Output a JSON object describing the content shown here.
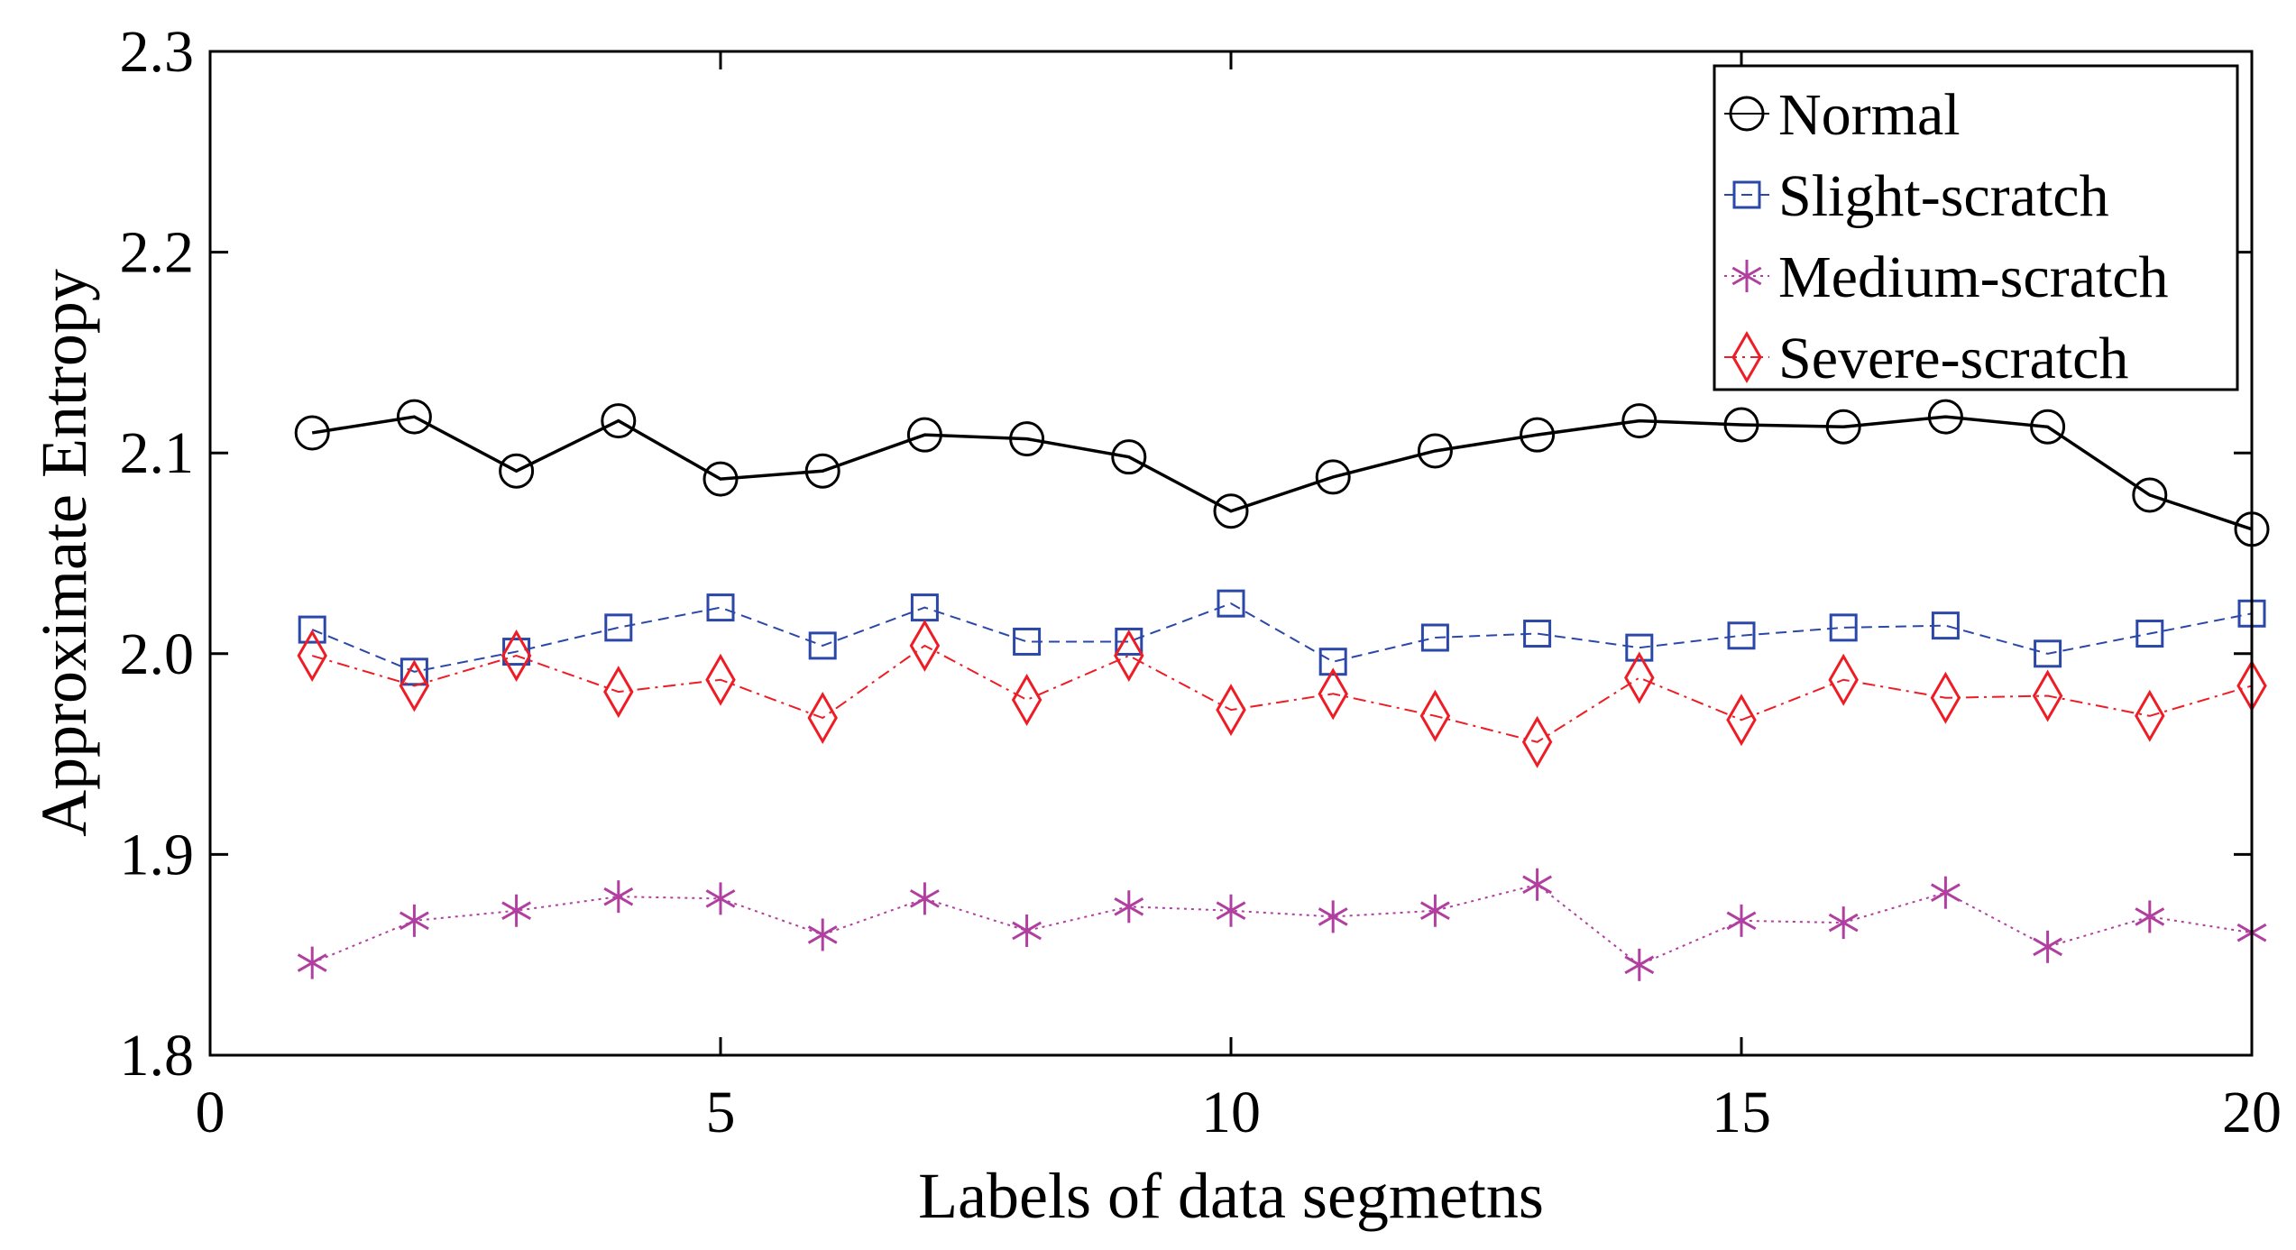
{
  "chart_data": {
    "type": "line",
    "xlabel": "Labels of data segmetns",
    "ylabel": "Approximate Entropy",
    "xlim": [
      0,
      20
    ],
    "ylim": [
      1.8,
      2.3
    ],
    "xticks": [
      "0",
      "5",
      "10",
      "15",
      "20"
    ],
    "yticks": [
      "1.8",
      "1.9",
      "2.0",
      "2.1",
      "2.2",
      "2.3"
    ],
    "grid": false,
    "legend_position": "top-right",
    "x": [
      1,
      2,
      3,
      4,
      5,
      6,
      7,
      8,
      9,
      10,
      11,
      12,
      13,
      14,
      15,
      16,
      17,
      18,
      19,
      20
    ],
    "series": [
      {
        "name": "Normal",
        "color": "#000000",
        "marker": "circle",
        "line": "solid",
        "values": [
          2.11,
          2.118,
          2.091,
          2.116,
          2.087,
          2.091,
          2.109,
          2.107,
          2.098,
          2.071,
          2.088,
          2.101,
          2.109,
          2.116,
          2.114,
          2.113,
          2.118,
          2.113,
          2.079,
          2.062
        ]
      },
      {
        "name": "Slight-scratch",
        "color": "#2b47a8",
        "marker": "square",
        "line": "dashed",
        "values": [
          2.012,
          1.991,
          2.001,
          2.013,
          2.023,
          2.004,
          2.023,
          2.006,
          2.006,
          2.025,
          1.996,
          2.008,
          2.01,
          2.003,
          2.009,
          2.013,
          2.014,
          2.0,
          2.01,
          2.02
        ]
      },
      {
        "name": "Medium-scratch",
        "color": "#b03fa0",
        "marker": "asterisk",
        "line": "dotted",
        "values": [
          1.846,
          1.867,
          1.872,
          1.879,
          1.878,
          1.86,
          1.878,
          1.862,
          1.874,
          1.872,
          1.869,
          1.872,
          1.885,
          1.845,
          1.867,
          1.866,
          1.881,
          1.854,
          1.869,
          1.861
        ]
      },
      {
        "name": "Severe-scratch",
        "color": "#ee1c24",
        "marker": "diamond",
        "line": "dashdot",
        "values": [
          1.999,
          1.984,
          1.999,
          1.981,
          1.987,
          1.968,
          2.004,
          1.977,
          1.999,
          1.972,
          1.98,
          1.969,
          1.956,
          1.988,
          1.967,
          1.987,
          1.978,
          1.979,
          1.969,
          1.984
        ]
      }
    ]
  }
}
